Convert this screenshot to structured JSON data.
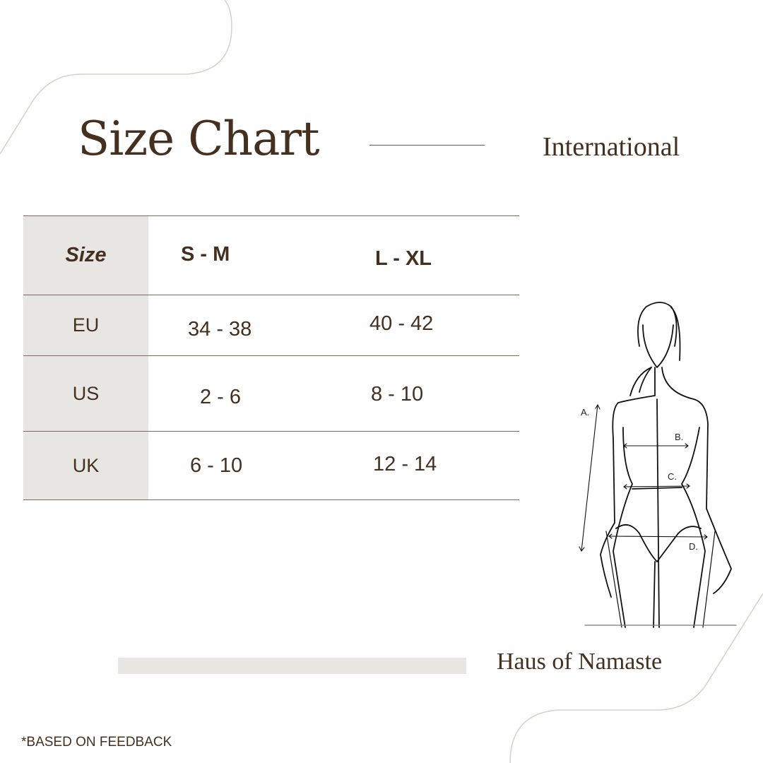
{
  "header": {
    "title": "Size Chart",
    "subtitle": "International"
  },
  "table": {
    "columns": [
      "Size",
      "S - M",
      "L - XL"
    ],
    "rows": [
      {
        "region": "EU",
        "sm": "34 - 38",
        "lxl": "40 - 42"
      },
      {
        "region": "US",
        "sm": "2 - 6",
        "lxl": "8  - 10"
      },
      {
        "region": "UK",
        "sm": "6  -  10",
        "lxl": "12 - 14"
      }
    ]
  },
  "figure": {
    "labels": [
      "A.",
      "B.",
      "C.",
      "D."
    ]
  },
  "brand": "Haus of Namaste",
  "footnote": "*BASED ON  FEEDBACK",
  "colors": {
    "text": "#45301f",
    "cell_bg": "#e8e6e2",
    "decor_line": "#d8cfcb"
  }
}
